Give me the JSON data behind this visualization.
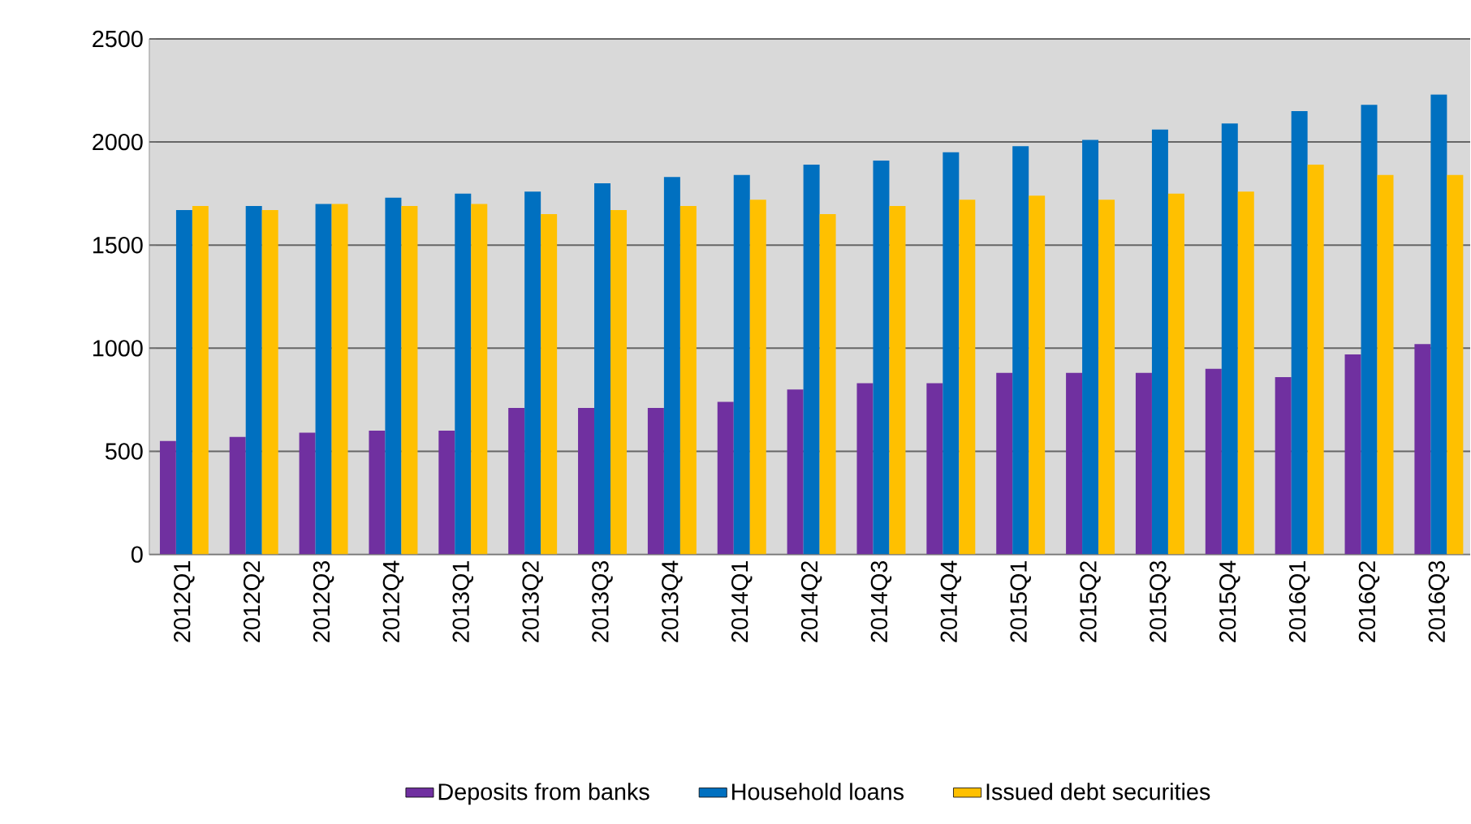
{
  "chart_data": {
    "type": "bar",
    "categories": [
      "2012Q1",
      "2012Q2",
      "2012Q3",
      "2012Q4",
      "2013Q1",
      "2013Q2",
      "2013Q3",
      "2013Q4",
      "2014Q1",
      "2014Q2",
      "2014Q3",
      "2014Q4",
      "2015Q1",
      "2015Q2",
      "2015Q3",
      "2015Q4",
      "2016Q1",
      "2016Q2",
      "2016Q3"
    ],
    "series": [
      {
        "name": "Deposits from banks",
        "color": "#7030a0",
        "values": [
          550,
          570,
          590,
          600,
          600,
          710,
          710,
          710,
          740,
          800,
          830,
          830,
          880,
          880,
          880,
          900,
          860,
          970,
          1020
        ]
      },
      {
        "name": "Household loans",
        "color": "#0070c0",
        "values": [
          1670,
          1690,
          1700,
          1730,
          1750,
          1760,
          1800,
          1830,
          1840,
          1890,
          1910,
          1950,
          1980,
          2010,
          2060,
          2090,
          2150,
          2180,
          2230
        ]
      },
      {
        "name": "Issued debt securities",
        "color": "#ffc000",
        "values": [
          1690,
          1670,
          1700,
          1690,
          1700,
          1650,
          1670,
          1690,
          1720,
          1650,
          1690,
          1720,
          1740,
          1720,
          1750,
          1760,
          1890,
          1840,
          1840
        ]
      }
    ],
    "ylim": [
      0,
      2500
    ],
    "yticks": [
      0,
      500,
      1000,
      1500,
      2000,
      2500
    ],
    "grid": "y",
    "legend": "bottom"
  }
}
